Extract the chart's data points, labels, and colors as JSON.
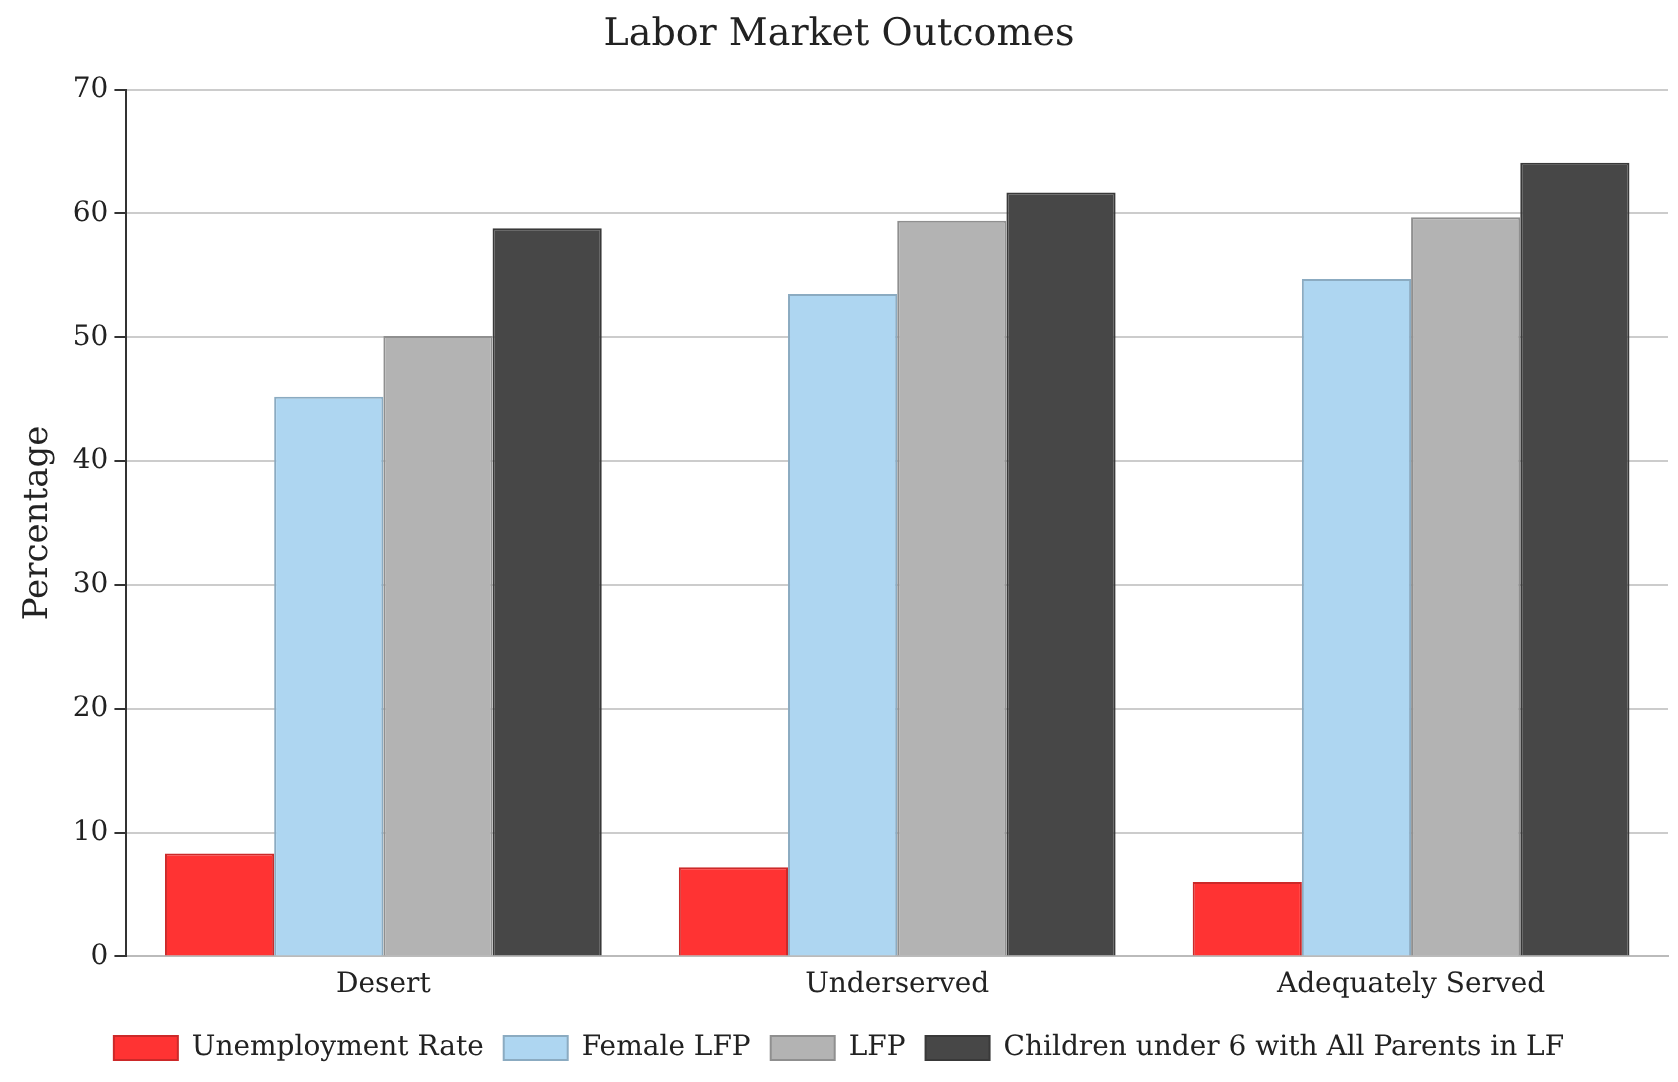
{
  "chart_data": {
    "type": "bar",
    "title": "Labor Market Outcomes",
    "ylabel": "Percentage",
    "categories": [
      "Desert",
      "Underserved",
      "Adequately Served"
    ],
    "series": [
      {
        "name": "Unemployment Rate",
        "color": "#ff3333",
        "values": [
          8.3,
          7.2,
          6.0
        ]
      },
      {
        "name": "Female LFP",
        "color": "#aed6f1",
        "values": [
          45.2,
          53.5,
          54.7
        ]
      },
      {
        "name": "LFP",
        "color": "#b3b3b3",
        "values": [
          50.1,
          59.4,
          59.7
        ]
      },
      {
        "name": "Children under 6 with All Parents in LF",
        "color": "#474747",
        "values": [
          58.8,
          61.7,
          64.1
        ]
      }
    ],
    "ylim": [
      0,
      70
    ],
    "yticks": [
      0,
      10,
      20,
      30,
      40,
      50,
      60,
      70
    ],
    "grid": "y",
    "legend": "bottom"
  }
}
